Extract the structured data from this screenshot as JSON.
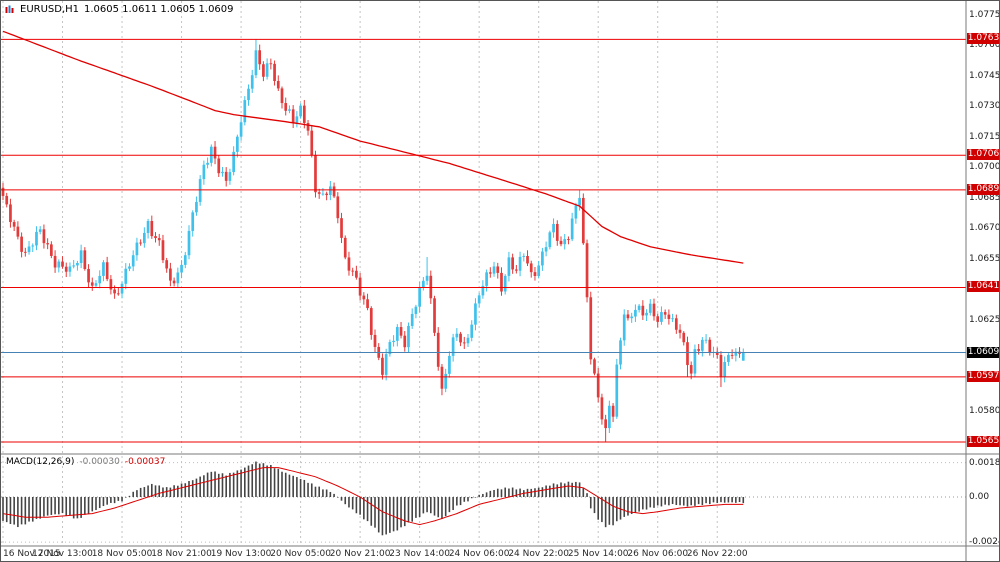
{
  "header": {
    "symbol_tf": "EURUSD,H1",
    "quotes": "1.0605 1.0611 1.0605 1.0609"
  },
  "macd_header": {
    "label": "MACD(12,26,9)",
    "main_value": "-0.00030",
    "signal_value": "-0.00037"
  },
  "colors": {
    "bull": "#3fc1ec",
    "bear": "#e23b3b",
    "level_line": "#ee0000",
    "ma_line": "#e00000",
    "signal_line": "#dd0000",
    "histogram": "#444444",
    "bid_line": "#4682b4",
    "badge_red": "#d00000",
    "badge_black": "#000000",
    "grid": "#c4c4c4",
    "separator": "#7a7a7a"
  },
  "chart_data": [
    {
      "type": "candlestick",
      "symbol": "EURUSD",
      "timeframe": "H1",
      "current_ohlc": {
        "open": 1.0605,
        "high": 1.0611,
        "low": 1.0605,
        "close": 1.0609
      },
      "bid_price": 1.0609,
      "ylim": [
        1.0559,
        1.0782
      ],
      "y_ticks": [
        1.0775,
        1.076,
        1.0745,
        1.073,
        1.0715,
        1.07,
        1.0685,
        1.067,
        1.0655,
        1.0625,
        1.058
      ],
      "level_lines": [
        1.0763,
        1.0706,
        1.0689,
        1.0641,
        1.0597,
        1.0565
      ],
      "x_labels": [
        "16 Nov 2015",
        "17 Nov 13:00",
        "18 Nov 05:00",
        "18 Nov 21:00",
        "19 Nov 13:00",
        "20 Nov 05:00",
        "20 Nov 21:00",
        "23 Nov 14:00",
        "24 Nov 06:00",
        "24 Nov 22:00",
        "25 Nov 14:00",
        "26 Nov 06:00",
        "26 Nov 22:00"
      ],
      "x_label_every_bars": 16,
      "bars_total": 200,
      "close_anchors": [
        [
          0,
          1.0684
        ],
        [
          3,
          1.067
        ],
        [
          6,
          1.0658
        ],
        [
          10,
          1.0668
        ],
        [
          14,
          1.0654
        ],
        [
          18,
          1.0648
        ],
        [
          21,
          1.0658
        ],
        [
          24,
          1.064
        ],
        [
          27,
          1.065
        ],
        [
          30,
          1.0637
        ],
        [
          33,
          1.0648
        ],
        [
          36,
          1.066
        ],
        [
          39,
          1.0673
        ],
        [
          42,
          1.0662
        ],
        [
          45,
          1.0642
        ],
        [
          48,
          1.0652
        ],
        [
          50,
          1.0668
        ],
        [
          52,
          1.0684
        ],
        [
          54,
          1.07
        ],
        [
          56,
          1.071
        ],
        [
          58,
          1.07
        ],
        [
          60,
          1.0692
        ],
        [
          62,
          1.0705
        ],
        [
          64,
          1.0725
        ],
        [
          66,
          1.074
        ],
        [
          68,
          1.0755
        ],
        [
          70,
          1.0745
        ],
        [
          72,
          1.0752
        ],
        [
          74,
          1.0738
        ],
        [
          76,
          1.0729
        ],
        [
          78,
          1.0722
        ],
        [
          80,
          1.0728
        ],
        [
          82,
          1.072
        ],
        [
          84,
          1.069
        ],
        [
          86,
          1.0684
        ],
        [
          88,
          1.069
        ],
        [
          90,
          1.0678
        ],
        [
          92,
          1.0655
        ],
        [
          94,
          1.0648
        ],
        [
          96,
          1.0638
        ],
        [
          98,
          1.063
        ],
        [
          100,
          1.0612
        ],
        [
          102,
          1.06
        ],
        [
          104,
          1.0612
        ],
        [
          106,
          1.062
        ],
        [
          108,
          1.0615
        ],
        [
          110,
          1.0628
        ],
        [
          112,
          1.0638
        ],
        [
          114,
          1.0648
        ],
        [
          116,
          1.062
        ],
        [
          118,
          1.059
        ],
        [
          120,
          1.0608
        ],
        [
          122,
          1.0618
        ],
        [
          124,
          1.0612
        ],
        [
          126,
          1.0625
        ],
        [
          128,
          1.0638
        ],
        [
          130,
          1.0645
        ],
        [
          132,
          1.0652
        ],
        [
          134,
          1.0642
        ],
        [
          136,
          1.0654
        ],
        [
          138,
          1.0648
        ],
        [
          140,
          1.0658
        ],
        [
          142,
          1.0648
        ],
        [
          144,
          1.0652
        ],
        [
          146,
          1.0662
        ],
        [
          148,
          1.067
        ],
        [
          150,
          1.0662
        ],
        [
          152,
          1.0668
        ],
        [
          155,
          1.0686
        ],
        [
          156,
          1.066
        ],
        [
          157,
          1.0635
        ],
        [
          158,
          1.0608
        ],
        [
          160,
          1.0588
        ],
        [
          162,
          1.057
        ],
        [
          163,
          1.0582
        ],
        [
          164,
          1.0578
        ],
        [
          165,
          1.06
        ],
        [
          167,
          1.063
        ],
        [
          168,
          1.0625
        ],
        [
          170,
          1.0632
        ],
        [
          172,
          1.0627
        ],
        [
          174,
          1.063
        ],
        [
          176,
          1.0626
        ],
        [
          178,
          1.063
        ],
        [
          180,
          1.0623
        ],
        [
          182,
          1.0618
        ],
        [
          184,
          1.0605
        ],
        [
          185,
          1.06
        ],
        [
          186,
          1.061
        ],
        [
          188,
          1.0615
        ],
        [
          190,
          1.061
        ],
        [
          192,
          1.0606
        ],
        [
          193,
          1.06
        ],
        [
          194,
          1.0605
        ],
        [
          196,
          1.061
        ],
        [
          198,
          1.0606
        ],
        [
          199,
          1.0609
        ]
      ],
      "wick_overrides": [
        [
          68,
          "h",
          1.0763
        ],
        [
          69,
          "h",
          1.0758
        ],
        [
          102,
          "l",
          1.0597
        ],
        [
          114,
          "h",
          1.0656
        ],
        [
          118,
          "l",
          1.0588
        ],
        [
          155,
          "h",
          1.0689
        ],
        [
          162,
          "l",
          1.0565
        ],
        [
          184,
          "l",
          1.0597
        ],
        [
          193,
          "l",
          1.0592
        ]
      ],
      "ma_anchors": [
        [
          0,
          1.0767
        ],
        [
          20,
          1.0753
        ],
        [
          40,
          1.074
        ],
        [
          50,
          1.0733
        ],
        [
          57,
          1.0728
        ],
        [
          62,
          1.0726
        ],
        [
          70,
          1.0724
        ],
        [
          78,
          1.0722
        ],
        [
          85,
          1.072
        ],
        [
          96,
          1.0713
        ],
        [
          107,
          1.0708
        ],
        [
          120,
          1.0702
        ],
        [
          134,
          1.0694
        ],
        [
          146,
          1.0687
        ],
        [
          155,
          1.0681
        ],
        [
          161,
          1.0671
        ],
        [
          166,
          1.0666
        ],
        [
          174,
          1.0661
        ],
        [
          185,
          1.0657
        ],
        [
          199,
          1.0653
        ]
      ]
    },
    {
      "type": "macd",
      "label": "MACD(12,26,9)",
      "macd_value": -0.0003,
      "signal_value": -0.00037,
      "y_ticks": [
        {
          "value": 0.00187,
          "label": "0.00187"
        },
        {
          "value": 0,
          "label": "0.00"
        },
        {
          "value": -0.00245,
          "label": "-0.00245"
        }
      ],
      "histogram_anchors": [
        [
          0,
          -0.0013
        ],
        [
          4,
          -0.0016
        ],
        [
          8,
          -0.0013
        ],
        [
          12,
          -0.001
        ],
        [
          16,
          -0.0009
        ],
        [
          20,
          -0.0012
        ],
        [
          24,
          -0.0008
        ],
        [
          28,
          -0.0004
        ],
        [
          32,
          -0.0002
        ],
        [
          34,
          0.0001
        ],
        [
          36,
          0.0004
        ],
        [
          40,
          0.0007
        ],
        [
          44,
          0.0005
        ],
        [
          48,
          0.0007
        ],
        [
          52,
          0.001
        ],
        [
          56,
          0.0014
        ],
        [
          60,
          0.0012
        ],
        [
          64,
          0.0015
        ],
        [
          68,
          0.0019
        ],
        [
          72,
          0.0017
        ],
        [
          76,
          0.0013
        ],
        [
          80,
          0.001
        ],
        [
          84,
          0.0006
        ],
        [
          88,
          0.0003
        ],
        [
          90,
          0.0
        ],
        [
          92,
          -0.0004
        ],
        [
          96,
          -0.001
        ],
        [
          100,
          -0.0017
        ],
        [
          102,
          -0.0021
        ],
        [
          106,
          -0.0018
        ],
        [
          110,
          -0.0013
        ],
        [
          114,
          -0.0008
        ],
        [
          118,
          -0.0012
        ],
        [
          122,
          -0.0005
        ],
        [
          126,
          -0.0001
        ],
        [
          128,
          0.0001
        ],
        [
          132,
          0.0004
        ],
        [
          136,
          0.0005
        ],
        [
          140,
          0.0004
        ],
        [
          144,
          0.0005
        ],
        [
          148,
          0.0007
        ],
        [
          152,
          0.0008
        ],
        [
          155,
          0.0008
        ],
        [
          157,
          0.0002
        ],
        [
          158,
          -0.0006
        ],
        [
          160,
          -0.0012
        ],
        [
          162,
          -0.0016
        ],
        [
          164,
          -0.0015
        ],
        [
          166,
          -0.0012
        ],
        [
          168,
          -0.001
        ],
        [
          172,
          -0.0007
        ],
        [
          176,
          -0.0005
        ],
        [
          180,
          -0.0004
        ],
        [
          184,
          -0.0005
        ],
        [
          188,
          -0.0004
        ],
        [
          192,
          -0.0003
        ],
        [
          196,
          -0.0003
        ],
        [
          199,
          -0.0003
        ]
      ],
      "signal_anchors": [
        [
          0,
          -0.0009
        ],
        [
          6,
          -0.0011
        ],
        [
          12,
          -0.0011
        ],
        [
          18,
          -0.001
        ],
        [
          24,
          -0.0009
        ],
        [
          30,
          -0.0006
        ],
        [
          36,
          -0.0002
        ],
        [
          42,
          0.0002
        ],
        [
          48,
          0.0005
        ],
        [
          54,
          0.0008
        ],
        [
          60,
          0.0011
        ],
        [
          66,
          0.0014
        ],
        [
          70,
          0.0016
        ],
        [
          74,
          0.0016
        ],
        [
          78,
          0.0014
        ],
        [
          84,
          0.0011
        ],
        [
          90,
          0.0006
        ],
        [
          96,
          0.0
        ],
        [
          102,
          -0.0008
        ],
        [
          108,
          -0.0013
        ],
        [
          112,
          -0.0015
        ],
        [
          116,
          -0.0013
        ],
        [
          122,
          -0.0009
        ],
        [
          128,
          -0.0004
        ],
        [
          134,
          -0.0001
        ],
        [
          140,
          0.0002
        ],
        [
          146,
          0.0004
        ],
        [
          152,
          0.0006
        ],
        [
          156,
          0.0005
        ],
        [
          160,
          0.0
        ],
        [
          164,
          -0.0005
        ],
        [
          168,
          -0.0008
        ],
        [
          172,
          -0.0009
        ],
        [
          176,
          -0.0008
        ],
        [
          182,
          -0.0006
        ],
        [
          188,
          -0.0005
        ],
        [
          194,
          -0.0004
        ],
        [
          199,
          -0.0004
        ]
      ]
    }
  ]
}
